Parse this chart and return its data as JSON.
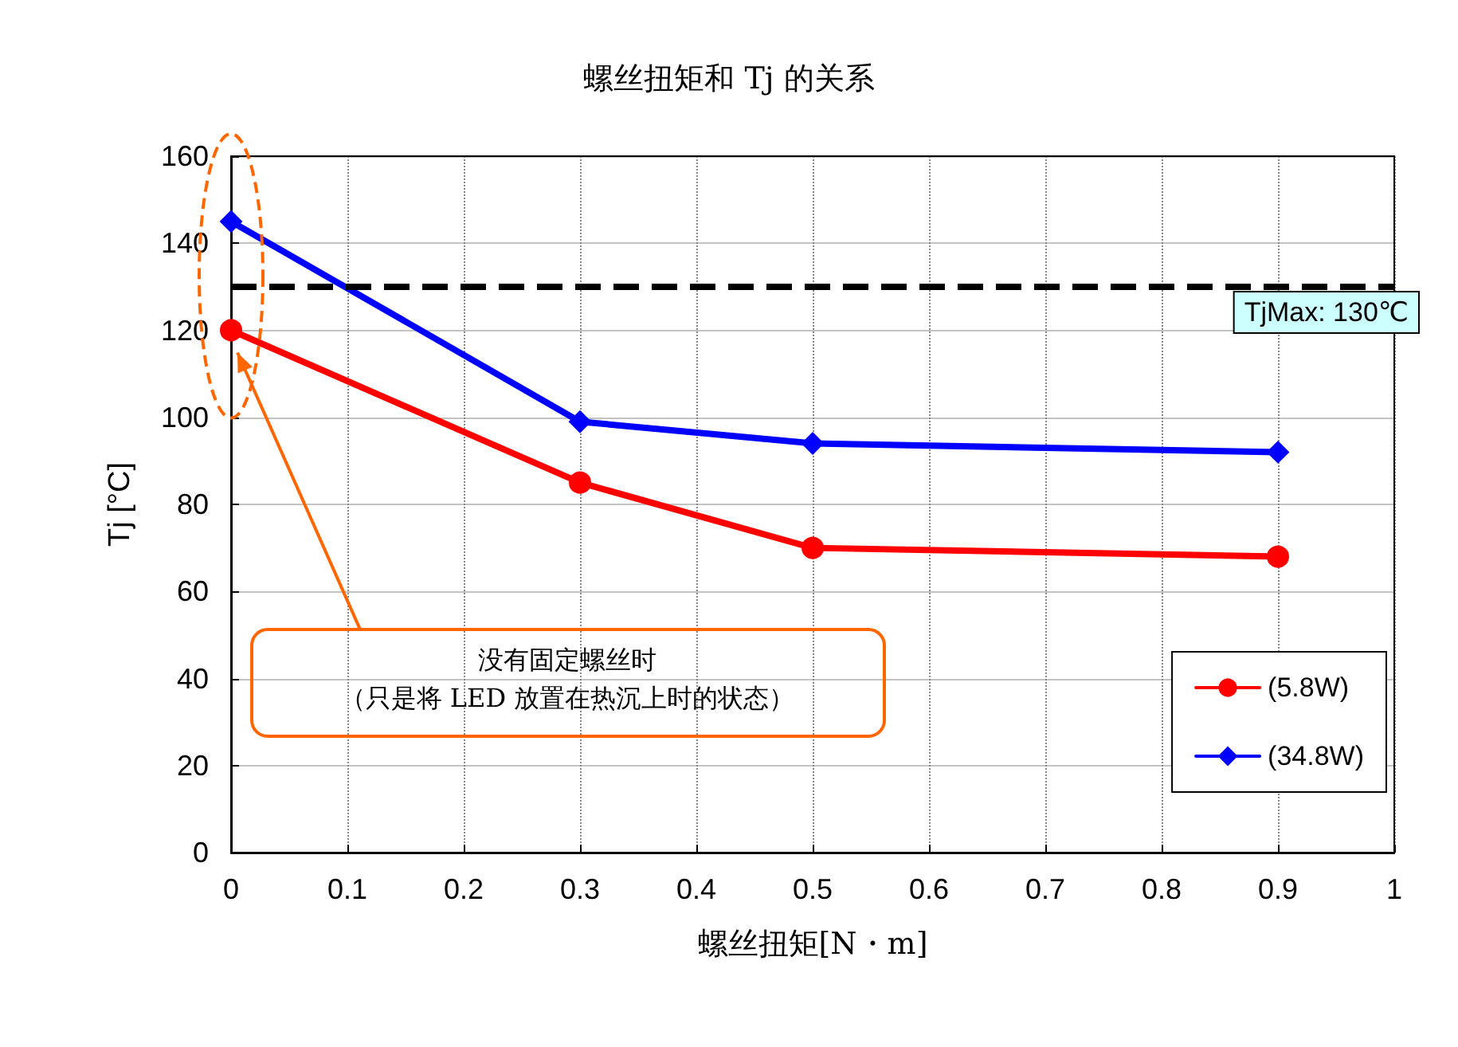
{
  "chart_data": {
    "type": "line",
    "title": "螺丝扭矩和 Tj 的关系",
    "xlabel": "螺丝扭矩[N・m]",
    "ylabel": "Tj [°C]",
    "x": [
      0,
      0.3,
      0.5,
      0.9
    ],
    "series": [
      {
        "name": "(5.8W)",
        "color": "#ff0000",
        "marker": "circle",
        "values": [
          120,
          85,
          70,
          68
        ]
      },
      {
        "name": "(34.8W)",
        "color": "#0000ff",
        "marker": "diamond",
        "values": [
          145,
          99,
          94,
          92
        ]
      }
    ],
    "xlim": [
      0,
      1
    ],
    "xticks": [
      0,
      0.1,
      0.2,
      0.3,
      0.4,
      0.5,
      0.6,
      0.7,
      0.8,
      0.9,
      1
    ],
    "ylim": [
      0,
      160
    ],
    "yticks": [
      0,
      20,
      40,
      60,
      80,
      100,
      120,
      140,
      160
    ],
    "ref_lines": [
      {
        "axis": "y",
        "value": 130,
        "label": "TjMax: 130℃",
        "color": "#000000",
        "line_style": "dashed"
      }
    ],
    "annotations": [
      "没有固定螺丝时",
      "（只是将 LED 放置在热沉上时的状态）"
    ],
    "grid": true,
    "legend": "bottom right",
    "line_style": "solid"
  }
}
